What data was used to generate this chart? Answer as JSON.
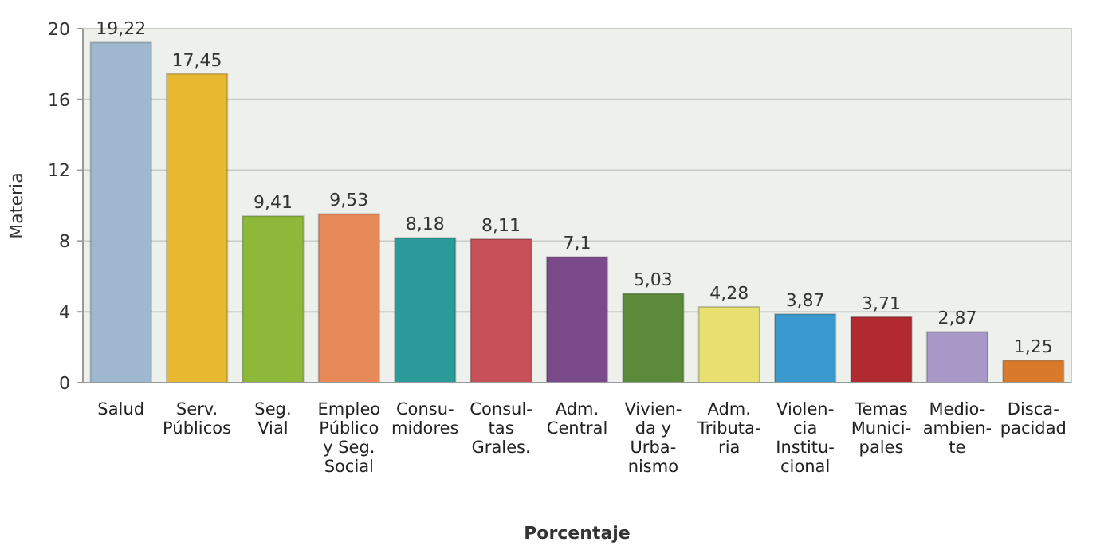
{
  "chart_data": {
    "type": "bar",
    "xlabel": "Porcentaje",
    "ylabel": "Materia",
    "categories": [
      "Salud",
      "Serv.\nPúblicos",
      "Seg.\nVial",
      "Empleo\nPúblico\ny Seg.\nSocial",
      "Consu-\nmidores",
      "Consul-\ntas\nGrales.",
      "Adm.\nCentral",
      "Vivien-\nda y\nUrba-\nnismo",
      "Adm.\nTributa-\nria",
      "Violen-\ncia\nInstitu-\ncional",
      "Temas\nMunici-\npales",
      "Medio-\nambien-\nte",
      "Disca-\npacidad"
    ],
    "values": [
      19.22,
      17.45,
      9.41,
      9.53,
      8.18,
      8.11,
      7.1,
      5.03,
      4.28,
      3.87,
      3.71,
      2.87,
      1.25
    ],
    "value_labels": [
      "19,22",
      "17,45",
      "9,41",
      "9,53",
      "8,18",
      "8,11",
      "7,1",
      "5,03",
      "4,28",
      "3,87",
      "3,71",
      "2,87",
      "1,25"
    ],
    "colors": [
      "#9fb8d0",
      "#e8b830",
      "#8db83a",
      "#e8895a",
      "#2a9a9a",
      "#c85058",
      "#7a4a8a",
      "#5a8a3a",
      "#e8e070",
      "#3a9ad0",
      "#b02a30",
      "#a898c8",
      "#d87a2a"
    ],
    "ylim": [
      0,
      20
    ],
    "yticks": [
      0,
      4,
      8,
      12,
      16,
      20
    ],
    "grid": "y"
  }
}
